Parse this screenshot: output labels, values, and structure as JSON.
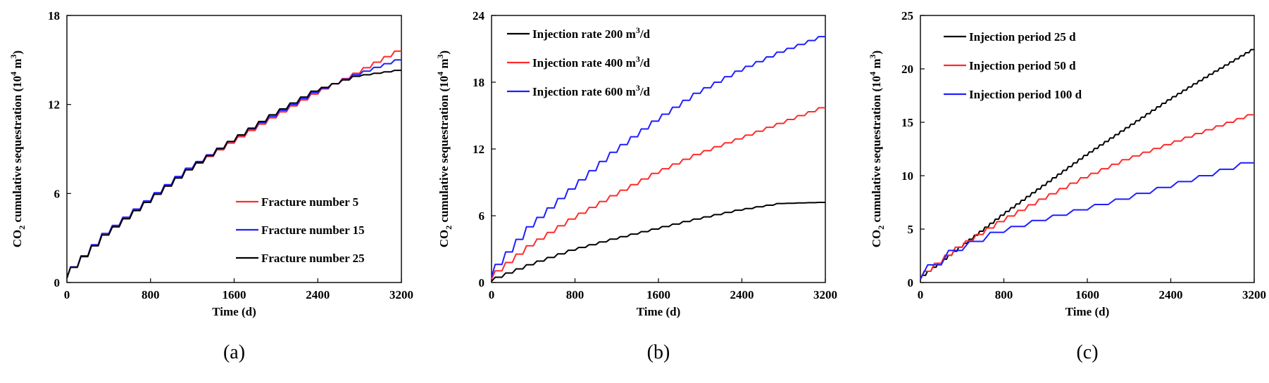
{
  "chart_data": [
    {
      "type": "line",
      "panel_label": "(a)",
      "xlabel": "Time (d)",
      "ylabel": {
        "prefix": "CO",
        "sub": "2",
        "middle": " cumulative sequestration (10",
        "sup": "4",
        "suffix": " m",
        "sup2": "3",
        "end": ")"
      },
      "xlim": [
        0,
        3200
      ],
      "ylim": [
        0,
        18
      ],
      "xticks": [
        0,
        800,
        1600,
        2400,
        3200
      ],
      "yticks": [
        0,
        6,
        12,
        18
      ],
      "legend_position": "bottom-right",
      "step_period_days": 100,
      "series": [
        {
          "name": "Fracture number 5",
          "color": "#ff2b2b",
          "x": [
            0,
            400,
            800,
            1200,
            1600,
            2000,
            2400,
            2800,
            3200
          ],
          "y": [
            0.3,
            3.2,
            5.4,
            7.6,
            9.4,
            11.1,
            12.7,
            14.1,
            15.6
          ]
        },
        {
          "name": "Fracture number 15",
          "color": "#1f1fff",
          "x": [
            0,
            400,
            800,
            1200,
            1600,
            2000,
            2400,
            2800,
            3200
          ],
          "y": [
            0.3,
            3.3,
            5.5,
            7.7,
            9.5,
            11.2,
            12.8,
            14.0,
            15.0
          ]
        },
        {
          "name": "Fracture number 25",
          "color": "#000000",
          "x": [
            0,
            400,
            800,
            1200,
            1600,
            2000,
            2400,
            2800,
            3200
          ],
          "y": [
            0.3,
            3.2,
            5.4,
            7.6,
            9.5,
            11.3,
            12.9,
            13.9,
            14.3
          ]
        }
      ]
    },
    {
      "type": "line",
      "panel_label": "(b)",
      "xlabel": "Time (d)",
      "ylabel": {
        "prefix": "CO",
        "sub": "2",
        "middle": " cumulative sequestration (10",
        "sup": "4",
        "suffix": " m",
        "sup2": "3",
        "end": ")"
      },
      "xlim": [
        0,
        3200
      ],
      "ylim": [
        0,
        24
      ],
      "xticks": [
        0,
        800,
        1600,
        2400,
        3200
      ],
      "yticks": [
        0,
        6,
        12,
        18,
        24
      ],
      "legend_position": "top-left",
      "step_period_days": 100,
      "series": [
        {
          "name": "Injection rate 200 m³/d",
          "name_base": "Injection rate 200 m",
          "name_sup": "3",
          "name_tail": "/d",
          "color": "#000000",
          "x": [
            0,
            400,
            800,
            1200,
            1600,
            2000,
            2400,
            2800,
            3200
          ],
          "y": [
            0.1,
            1.6,
            2.9,
            3.9,
            4.8,
            5.7,
            6.5,
            7.1,
            7.2
          ]
        },
        {
          "name": "Injection rate 400 m³/d",
          "name_base": "Injection rate 400 m",
          "name_sup": "3",
          "name_tail": "/d",
          "color": "#ff2b2b",
          "x": [
            0,
            400,
            800,
            1200,
            1600,
            2000,
            2400,
            2800,
            3200
          ],
          "y": [
            0.3,
            3.3,
            5.7,
            7.8,
            9.8,
            11.5,
            12.9,
            14.3,
            15.7
          ]
        },
        {
          "name": "Injection rate 600 m³/d",
          "name_base": "Injection rate 600 m",
          "name_sup": "3",
          "name_tail": "/d",
          "color": "#1f1fff",
          "x": [
            0,
            400,
            800,
            1200,
            1600,
            2000,
            2400,
            2800,
            3200
          ],
          "y": [
            0.5,
            5.0,
            8.4,
            11.7,
            14.5,
            17.0,
            19.0,
            20.7,
            22.1
          ]
        }
      ]
    },
    {
      "type": "line",
      "panel_label": "(c)",
      "xlabel": "Time (d)",
      "ylabel": {
        "prefix": "CO",
        "sub": "2",
        "middle": " cumulative sequestration (10",
        "sup": "4",
        "suffix": " m",
        "sup2": "3",
        "end": ")"
      },
      "xlim": [
        0,
        3200
      ],
      "ylim": [
        0,
        25
      ],
      "xticks": [
        0,
        800,
        1600,
        2400,
        3200
      ],
      "yticks": [
        0,
        5,
        10,
        15,
        20,
        25
      ],
      "legend_position": "top-left",
      "series": [
        {
          "name": "Injection period 25 d",
          "color": "#000000",
          "step_period_days": 50,
          "x": [
            0,
            400,
            800,
            1200,
            1600,
            2000,
            2400,
            2800,
            3200
          ],
          "y": [
            0.3,
            3.3,
            6.3,
            9.1,
            11.9,
            14.5,
            17.1,
            19.5,
            21.8
          ]
        },
        {
          "name": "Injection period 50 d",
          "color": "#ff2b2b",
          "step_period_days": 100,
          "x": [
            0,
            400,
            800,
            1200,
            1600,
            2000,
            2400,
            2800,
            3200
          ],
          "y": [
            0.3,
            3.3,
            5.7,
            7.8,
            9.8,
            11.5,
            12.9,
            14.3,
            15.7
          ]
        },
        {
          "name": "Injection period 100 d",
          "color": "#1f1fff",
          "step_period_days": 200,
          "x": [
            0,
            400,
            800,
            1200,
            1600,
            2000,
            2400,
            2800,
            3200
          ],
          "y": [
            0.3,
            3.0,
            4.7,
            5.8,
            6.8,
            7.8,
            8.9,
            10.0,
            11.2
          ]
        }
      ]
    }
  ]
}
